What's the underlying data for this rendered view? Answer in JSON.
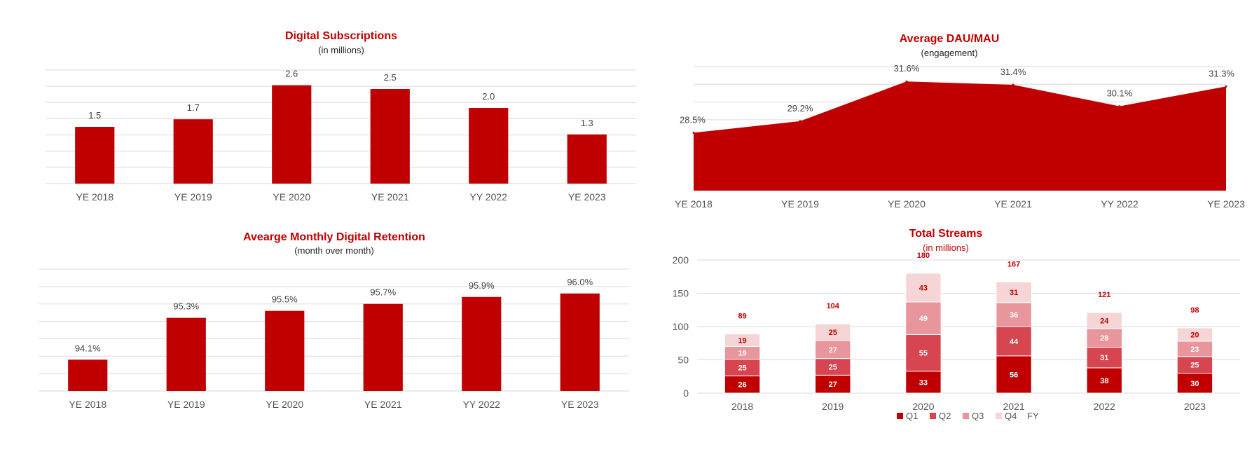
{
  "chart_data": [
    {
      "id": "digital-subscriptions",
      "type": "bar",
      "title": "Digital Subscriptions",
      "subtitle": "(in millions)",
      "categories": [
        "YE 2018",
        "YE 2019",
        "YE 2020",
        "YE 2021",
        "YY 2022",
        "YE 2023"
      ],
      "values": [
        1.5,
        1.7,
        2.6,
        2.5,
        2.0,
        1.3
      ],
      "value_labels": [
        "1.5",
        "1.7",
        "2.6",
        "2.5",
        "2.0",
        "1.3"
      ],
      "ylim": [
        0,
        3.0
      ],
      "grid": true,
      "color": "#C00000"
    },
    {
      "id": "average-dau-mau",
      "type": "area",
      "title": "Average DAU/MAU",
      "subtitle": "(engagement)",
      "categories": [
        "YE 2018",
        "YE 2019",
        "YE 2020",
        "YE 2021",
        "YY 2022",
        "YE 2023"
      ],
      "values": [
        28.5,
        29.2,
        31.6,
        31.4,
        30.1,
        31.3
      ],
      "value_labels": [
        "28.5%",
        "29.2%",
        "31.6%",
        "31.4%",
        "30.1%",
        "31.3%"
      ],
      "ylim": [
        25.0,
        32.5
      ],
      "grid": true,
      "color": "#C00000"
    },
    {
      "id": "monthly-digital-retention",
      "type": "bar",
      "title": "Avearge Monthly Digital Retention",
      "subtitle": "(month over month)",
      "categories": [
        "YE 2018",
        "YE 2019",
        "YE 2020",
        "YE 2021",
        "YY 2022",
        "YE 2023"
      ],
      "values": [
        94.1,
        95.3,
        95.5,
        95.7,
        95.9,
        96.0
      ],
      "value_labels": [
        "94.1%",
        "95.3%",
        "95.5%",
        "95.7%",
        "95.9%",
        "96.0%"
      ],
      "ylim": [
        93.2,
        96.7
      ],
      "grid": true,
      "color": "#C00000"
    },
    {
      "id": "total-streams",
      "type": "bar",
      "stacked": true,
      "title": "Total Streams",
      "subtitle": "(in millions)",
      "categories": [
        "2018",
        "2019",
        "2020",
        "2021",
        "2022",
        "2023"
      ],
      "series": [
        {
          "name": "Q1",
          "values": [
            26,
            27,
            33,
            56,
            38,
            30
          ],
          "color": "#C00000",
          "label_color": "#ffffff"
        },
        {
          "name": "Q2",
          "values": [
            25,
            25,
            55,
            44,
            31,
            25
          ],
          "color": "#D64550",
          "label_color": "#ffffff"
        },
        {
          "name": "Q3",
          "values": [
            19,
            27,
            49,
            36,
            28,
            23
          ],
          "color": "#E8959B",
          "label_color": "#ffffff"
        },
        {
          "name": "Q4",
          "values": [
            19,
            25,
            43,
            31,
            24,
            20
          ],
          "color": "#F6D5D7",
          "label_color": "#C00000"
        }
      ],
      "totals": {
        "name": "FY",
        "values": [
          89,
          104,
          180,
          167,
          121,
          98
        ]
      },
      "yticks": [
        0,
        50,
        100,
        150,
        200
      ],
      "ylim": [
        0,
        200
      ],
      "grid": true,
      "legend": "bottom"
    }
  ]
}
